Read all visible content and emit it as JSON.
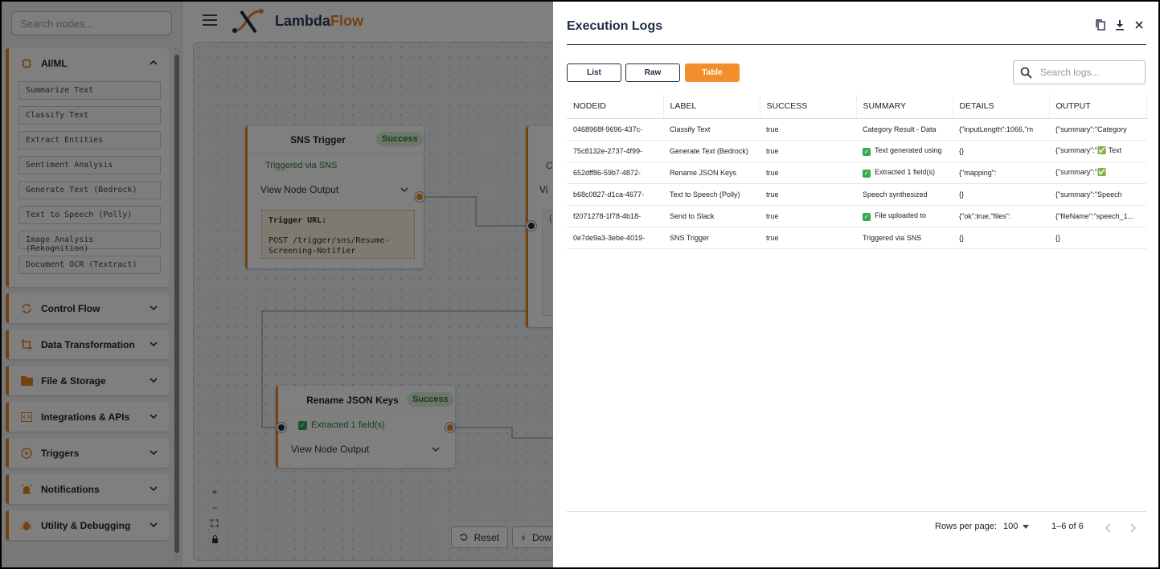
{
  "sidebar": {
    "search_placeholder": "Search nodes...",
    "categories": [
      {
        "label": "AI/ML",
        "icon": "chip-icon",
        "expanded": true,
        "items": [
          "Summarize Text",
          "Classify Text",
          "Extract Entities",
          "Sentiment Analysis",
          "Generate Text (Bedrock)",
          "Text to Speech (Polly)",
          "Image Analysis (Rekognition)",
          "Document OCR (Textract)"
        ]
      },
      {
        "label": "Control Flow",
        "icon": "sync-icon"
      },
      {
        "label": "Data Transformation",
        "icon": "crop-icon"
      },
      {
        "label": "File & Storage",
        "icon": "folder-icon"
      },
      {
        "label": "Integrations & APIs",
        "icon": "code-icon"
      },
      {
        "label": "Triggers",
        "icon": "play-circle-icon"
      },
      {
        "label": "Notifications",
        "icon": "alarm-icon"
      },
      {
        "label": "Utility & Debugging",
        "icon": "bug-icon"
      }
    ]
  },
  "header": {
    "brand_a": "Lambda",
    "brand_b": "Flow"
  },
  "canvas": {
    "sns_node": {
      "title": "SNS Trigger",
      "badge": "Success",
      "subtitle": "Triggered via SNS",
      "output_label": "View Node Output",
      "trigger_label": "Trigger URL:",
      "trigger_value": "POST /trigger/sns/Resume-Screening-Notifier"
    },
    "rename_node": {
      "title": "Rename JSON Keys",
      "badge": "Success",
      "subtitle": "Extracted 1 field(s)",
      "output_label": "View Node Output"
    },
    "partial_node": {
      "title_frag": "Ca",
      "output_frag": "Vi",
      "brace": "{"
    },
    "zoom": {
      "in": "+",
      "out": "−"
    },
    "reset_label": "Reset",
    "download_label": "Dow"
  },
  "drawer": {
    "title": "Execution Logs",
    "tabs": [
      "List",
      "Raw",
      "Table"
    ],
    "active_tab": "Table",
    "search_placeholder": "Search logs...",
    "columns": [
      "NODEID",
      "LABEL",
      "SUCCESS",
      "SUMMARY",
      "DETAILS",
      "OUTPUT"
    ],
    "rows": [
      {
        "nodeid": "0468968f-9696-437c-",
        "label": "Classify Text",
        "success": "true",
        "summary": "Category Result - Data",
        "summary_check": false,
        "details": "{\"inputLength\":1066,\"m",
        "output": "{\"summary\":\"Category"
      },
      {
        "nodeid": "75c8132e-2737-4f99-",
        "label": "Generate Text (Bedrock)",
        "success": "true",
        "summary": "Text generated using",
        "summary_check": true,
        "details": "{}",
        "output": "{\"summary\":\"✅ Text"
      },
      {
        "nodeid": "652dff86-59b7-4872-",
        "label": "Rename JSON Keys",
        "success": "true",
        "summary": "Extracted 1 field(s)",
        "summary_check": true,
        "details": "{\"mapping\":",
        "output": "{\"summary\":\"✅"
      },
      {
        "nodeid": "b68c0827-d1ca-4677-",
        "label": "Text to Speech (Polly)",
        "success": "true",
        "summary": "Speech synthesized",
        "summary_check": false,
        "details": "{}",
        "output": "{\"summary\":\"Speech"
      },
      {
        "nodeid": "f2071278-1f78-4b18-",
        "label": "Send to Slack",
        "success": "true",
        "summary": "File uploaded to",
        "summary_check": true,
        "details": "{\"ok\":true,\"files\":",
        "output": "{\"fileName\":\"speech_1..."
      },
      {
        "nodeid": "0e7de9a3-3ebe-4019-",
        "label": "SNS Trigger",
        "success": "true",
        "summary": "Triggered via SNS",
        "summary_check": false,
        "details": "{}",
        "output": "{}"
      }
    ],
    "pager": {
      "rows_label": "Rows per page:",
      "rows_value": "100",
      "range": "1–6 of 6"
    }
  },
  "colors": {
    "accent": "#e8821e",
    "navy": "#1f2d45",
    "success": "#2e7d32"
  }
}
